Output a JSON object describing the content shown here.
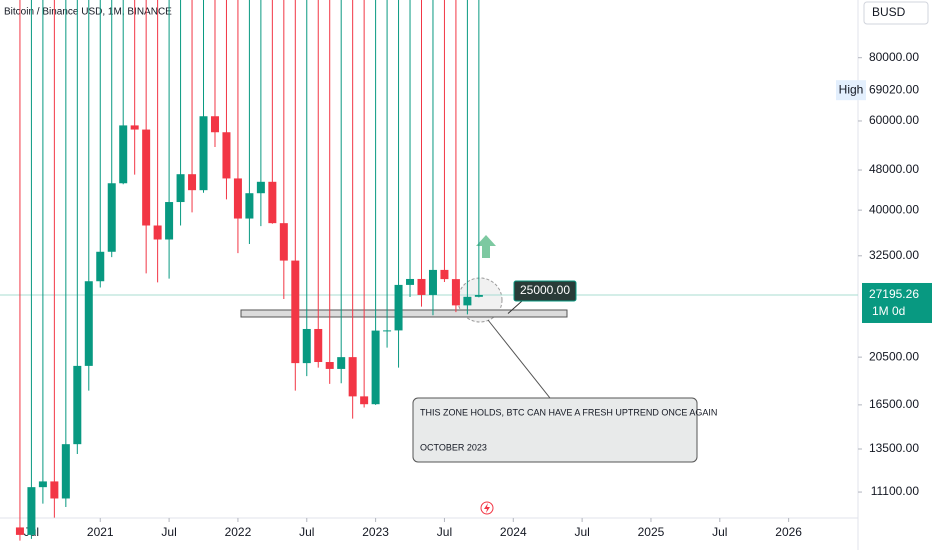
{
  "chart_data": {
    "type": "candlestick",
    "title": "Bitcoin / Binance USD, 1M, BINANCE",
    "currency": "BUSD",
    "log_scale": true,
    "grid": false,
    "up_color": "#089981",
    "down_color": "#f23645",
    "x": [
      "2020-06",
      "2020-07",
      "2020-08",
      "2020-09",
      "2020-10",
      "2020-11",
      "2020-12",
      "2021-01",
      "2021-02",
      "2021-03",
      "2021-04",
      "2021-05",
      "2021-06",
      "2021-07",
      "2021-08",
      "2021-09",
      "2021-10",
      "2021-11",
      "2021-12",
      "2022-01",
      "2022-02",
      "2022-03",
      "2022-04",
      "2022-05",
      "2022-06",
      "2022-07",
      "2022-08",
      "2022-09",
      "2022-10",
      "2022-11",
      "2022-12",
      "2023-01",
      "2023-02",
      "2023-03",
      "2023-04",
      "2023-05",
      "2023-06",
      "2023-07",
      "2023-08",
      "2023-09",
      "2023-10"
    ],
    "open": [
      9450,
      9135,
      11350,
      11650,
      10780,
      13800,
      19700,
      28950,
      33100,
      45200,
      58800,
      57700,
      37300,
      35000,
      41500,
      47100,
      43800,
      61300,
      57000,
      46200,
      38500,
      43200,
      45500,
      37700,
      31800,
      19950,
      23300,
      20050,
      19430,
      20500,
      17150,
      16550,
      23130,
      23150,
      28470,
      29250,
      27200,
      30480,
      29230,
      25940,
      26970
    ],
    "high": {
      "value": 69020,
      "label": "69020.00"
    },
    "low": [
      8900,
      8970,
      10530,
      9880,
      10370,
      13200,
      17600,
      28130,
      32300,
      45000,
      47000,
      30000,
      28800,
      29300,
      37300,
      39600,
      43300,
      53300,
      42000,
      32900,
      34300,
      37200,
      37600,
      26700,
      17600,
      18800,
      19550,
      18150,
      18200,
      15500,
      16300,
      16500,
      21400,
      19550,
      26950,
      25800,
      24800,
      28850,
      25150,
      24900,
      26900
    ],
    "close": [
      9135,
      11350,
      11650,
      10780,
      13800,
      19700,
      28950,
      33100,
      45200,
      58800,
      57700,
      37300,
      35000,
      41500,
      47100,
      43800,
      61300,
      57000,
      46200,
      38500,
      43200,
      45500,
      37700,
      31800,
      19950,
      23300,
      20050,
      19430,
      20500,
      17150,
      16550,
      23130,
      23150,
      28470,
      29250,
      27200,
      30480,
      29230,
      25940,
      26970,
      27195.26
    ],
    "xlim": [
      "2020-04",
      "2026-06"
    ],
    "xticks": [
      {
        "value": "2020-07",
        "label": "Jul"
      },
      {
        "value": "2021-01",
        "label": "2021"
      },
      {
        "value": "2021-07",
        "label": "Jul"
      },
      {
        "value": "2022-01",
        "label": "2022"
      },
      {
        "value": "2022-07",
        "label": "Jul"
      },
      {
        "value": "2023-01",
        "label": "2023"
      },
      {
        "value": "2023-07",
        "label": "Jul"
      },
      {
        "value": "2024-01",
        "label": "2024"
      },
      {
        "value": "2024-07",
        "label": "Jul"
      },
      {
        "value": "2025-01",
        "label": "2025"
      },
      {
        "value": "2025-07",
        "label": "Jul"
      },
      {
        "value": "2026-01",
        "label": "2026"
      }
    ],
    "ylim": [
      10000,
      104000
    ],
    "yticks": [
      {
        "value": 80000,
        "label": "80000.00"
      },
      {
        "value": 60000,
        "label": "60000.00"
      },
      {
        "value": 48000,
        "label": "48000.00"
      },
      {
        "value": 40000,
        "label": "40000.00"
      },
      {
        "value": 32500,
        "label": "32500.00"
      },
      {
        "value": 20500,
        "label": "20500.00"
      },
      {
        "value": 16500,
        "label": "16500.00"
      },
      {
        "value": 13500,
        "label": "13500.00"
      },
      {
        "value": 11100,
        "label": "11100.00"
      }
    ],
    "high_label": "High",
    "current_price": 27195.26,
    "interval_label": "1M 0d",
    "level": {
      "value": 25000,
      "label": "25000.00"
    },
    "annotation": [
      "THIS ZONE HOLDS, BTC CAN HAVE A FRESH UPTREND ONCE AGAIN",
      "OCTOBER 2023"
    ]
  }
}
